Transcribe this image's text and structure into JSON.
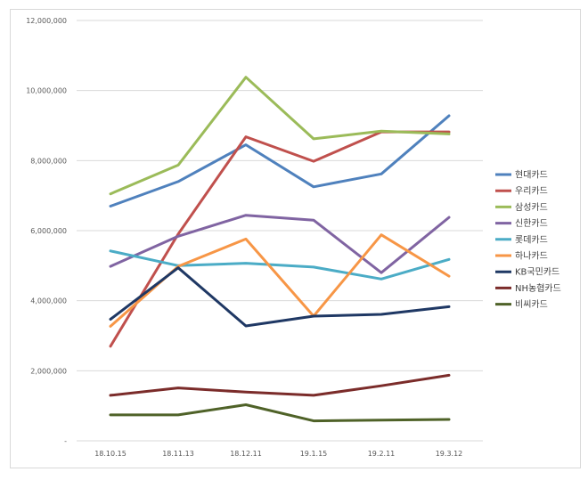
{
  "chart_data": {
    "type": "line",
    "title": "",
    "xlabel": "",
    "ylabel": "",
    "categories": [
      "18.10.15",
      "18.11.13",
      "18.12.11",
      "19.1.15",
      "19.2.11",
      "19.3.12"
    ],
    "ylim": [
      0,
      12000000
    ],
    "yticks": [
      0,
      2000000,
      4000000,
      6000000,
      8000000,
      10000000,
      12000000
    ],
    "ytick_labels": [
      "-",
      "2,000,000",
      "4,000,000",
      "6,000,000",
      "8,000,000",
      "10,000,000",
      "12,000,000"
    ],
    "grid": "horizontal",
    "legend_position": "right",
    "series": [
      {
        "name": "현대카드",
        "color": "#4f81bd",
        "values": [
          6700000,
          7400000,
          8450000,
          7250000,
          7620000,
          9280000
        ]
      },
      {
        "name": "우리카드",
        "color": "#c0504d",
        "values": [
          2700000,
          5900000,
          8680000,
          7980000,
          8820000,
          8820000
        ]
      },
      {
        "name": "삼성카드",
        "color": "#9bbb59",
        "values": [
          7050000,
          7870000,
          10380000,
          8620000,
          8840000,
          8760000
        ]
      },
      {
        "name": "신한카드",
        "color": "#8064a2",
        "values": [
          4980000,
          5840000,
          6440000,
          6300000,
          4800000,
          6380000
        ]
      },
      {
        "name": "롯데카드",
        "color": "#4bacc6",
        "values": [
          5420000,
          5000000,
          5070000,
          4960000,
          4620000,
          5180000
        ]
      },
      {
        "name": "하나카드",
        "color": "#f79646",
        "values": [
          3270000,
          4980000,
          5760000,
          3560000,
          5880000,
          4700000
        ]
      },
      {
        "name": "KB국민카드",
        "color": "#1f3864",
        "values": [
          3470000,
          4940000,
          3280000,
          3560000,
          3610000,
          3830000
        ]
      },
      {
        "name": "NH농협카드",
        "color": "#7b2c2a",
        "values": [
          1300000,
          1510000,
          1390000,
          1300000,
          1570000,
          1870000
        ]
      },
      {
        "name": "비씨카드",
        "color": "#4f6228",
        "values": [
          740000,
          740000,
          1030000,
          570000,
          590000,
          610000
        ]
      }
    ]
  }
}
